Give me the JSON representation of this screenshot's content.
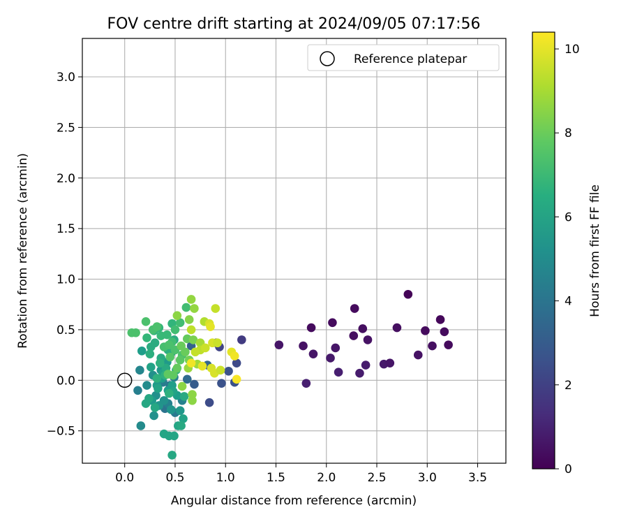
{
  "chart_data": {
    "type": "scatter",
    "title": "FOV centre drift starting at 2024/09/05 07:17:56",
    "xlabel": "Angular distance from reference (arcmin)",
    "ylabel": "Rotation from reference (arcmin)",
    "xlim": [
      -0.42,
      3.78
    ],
    "ylim": [
      -0.82,
      3.38
    ],
    "xticks": [
      0.0,
      0.5,
      1.0,
      1.5,
      2.0,
      2.5,
      3.0,
      3.5
    ],
    "xtick_labels": [
      "0.0",
      "0.5",
      "1.0",
      "1.5",
      "2.0",
      "2.5",
      "3.0",
      "3.5"
    ],
    "yticks": [
      -0.5,
      0.0,
      0.5,
      1.0,
      1.5,
      2.0,
      2.5,
      3.0
    ],
    "ytick_labels": [
      "−0.5",
      "0.0",
      "0.5",
      "1.0",
      "1.5",
      "2.0",
      "2.5",
      "3.0"
    ],
    "grid": true,
    "legend": {
      "position": "top-right",
      "entries": [
        {
          "label": "Reference platepar",
          "marker": "open-circle"
        }
      ]
    },
    "reference_point": {
      "x": 0.0,
      "y": 0.0
    },
    "colorbar": {
      "label": "Hours from first FF file",
      "colormap": "viridis",
      "range": [
        0,
        10.4
      ],
      "ticks": [
        0,
        2,
        4,
        6,
        8,
        10
      ],
      "tick_labels": [
        "0",
        "2",
        "4",
        "6",
        "8",
        "10"
      ]
    },
    "points": [
      [
        2.81,
        0.85,
        0.1
      ],
      [
        3.13,
        0.6,
        0.2
      ],
      [
        2.28,
        0.71,
        0.3
      ],
      [
        2.06,
        0.57,
        0.3
      ],
      [
        1.85,
        0.52,
        0.3
      ],
      [
        2.36,
        0.51,
        0.4
      ],
      [
        2.7,
        0.52,
        0.4
      ],
      [
        2.98,
        0.49,
        0.3
      ],
      [
        3.17,
        0.48,
        0.3
      ],
      [
        2.27,
        0.44,
        0.4
      ],
      [
        2.41,
        0.4,
        0.5
      ],
      [
        1.53,
        0.35,
        0.6
      ],
      [
        1.77,
        0.34,
        0.5
      ],
      [
        3.05,
        0.34,
        0.4
      ],
      [
        3.21,
        0.35,
        0.3
      ],
      [
        2.09,
        0.32,
        0.6
      ],
      [
        1.87,
        0.26,
        0.6
      ],
      [
        2.91,
        0.25,
        0.5
      ],
      [
        2.04,
        0.22,
        0.7
      ],
      [
        2.57,
        0.16,
        0.7
      ],
      [
        2.63,
        0.17,
        0.6
      ],
      [
        2.39,
        0.15,
        0.8
      ],
      [
        2.12,
        0.08,
        0.9
      ],
      [
        2.33,
        0.07,
        0.8
      ],
      [
        1.8,
        -0.03,
        0.9
      ],
      [
        1.16,
        0.4,
        1.8
      ],
      [
        0.91,
        0.37,
        1.9
      ],
      [
        0.94,
        0.33,
        2.1
      ],
      [
        1.11,
        0.17,
        2.3
      ],
      [
        1.03,
        0.09,
        2.6
      ],
      [
        0.96,
        -0.03,
        2.6
      ],
      [
        1.09,
        -0.02,
        2.6
      ],
      [
        0.84,
        -0.22,
        2.4
      ],
      [
        0.69,
        -0.04,
        3.0
      ],
      [
        0.66,
        0.34,
        3.2
      ],
      [
        0.82,
        0.15,
        3.4
      ],
      [
        0.62,
        0.01,
        3.6
      ],
      [
        0.45,
        -0.05,
        3.8
      ],
      [
        0.4,
        -0.28,
        4.0
      ],
      [
        0.5,
        -0.32,
        4.2
      ],
      [
        0.38,
        -0.02,
        4.4
      ],
      [
        0.13,
        -0.1,
        4.5
      ],
      [
        0.43,
        -0.23,
        4.6
      ],
      [
        0.57,
        -0.2,
        4.6
      ],
      [
        0.49,
        0.03,
        4.6
      ],
      [
        0.15,
        0.1,
        4.8
      ],
      [
        0.16,
        -0.45,
        5.0
      ],
      [
        0.22,
        -0.05,
        5.0
      ],
      [
        0.28,
        0.05,
        5.2
      ],
      [
        0.31,
        -0.15,
        5.2
      ],
      [
        0.34,
        -0.25,
        5.4
      ],
      [
        0.29,
        -0.35,
        5.2
      ],
      [
        0.39,
        -0.2,
        5.3
      ],
      [
        0.46,
        -0.29,
        5.4
      ],
      [
        0.55,
        -0.3,
        5.5
      ],
      [
        0.36,
        0.1,
        5.5
      ],
      [
        0.42,
        0.18,
        5.6
      ],
      [
        0.27,
        -0.2,
        5.6
      ],
      [
        0.32,
        -0.05,
        5.6
      ],
      [
        0.47,
        -0.05,
        5.8
      ],
      [
        0.52,
        -0.15,
        5.8
      ],
      [
        0.17,
        0.29,
        5.8
      ],
      [
        0.37,
        0.02,
        5.8
      ],
      [
        0.43,
        -0.1,
        5.8
      ],
      [
        0.26,
        0.13,
        6.0
      ],
      [
        0.48,
        -0.11,
        6.0
      ],
      [
        0.38,
        0.07,
        6.0
      ],
      [
        0.33,
        -0.08,
        6.0
      ],
      [
        0.53,
        -0.45,
        6.1
      ],
      [
        0.58,
        -0.38,
        6.0
      ],
      [
        0.39,
        -0.53,
        6.1
      ],
      [
        0.44,
        -0.55,
        6.1
      ],
      [
        0.49,
        -0.55,
        6.1
      ],
      [
        0.47,
        -0.74,
        6.2
      ],
      [
        0.21,
        -0.23,
        6.2
      ],
      [
        0.24,
        -0.18,
        6.2
      ],
      [
        0.3,
        -0.27,
        6.2
      ],
      [
        0.56,
        -0.45,
        6.3
      ],
      [
        0.59,
        -0.16,
        6.3
      ],
      [
        0.36,
        0.22,
        6.3
      ],
      [
        0.41,
        0.12,
        6.3
      ],
      [
        0.46,
        0.27,
        6.3
      ],
      [
        0.26,
        0.33,
        6.4
      ],
      [
        0.3,
        0.37,
        6.4
      ],
      [
        0.49,
        0.4,
        6.4
      ],
      [
        0.43,
        0.3,
        6.5
      ],
      [
        0.25,
        0.26,
        6.5
      ],
      [
        0.35,
        0.17,
        6.6
      ],
      [
        0.4,
        0.05,
        6.6
      ],
      [
        0.32,
        0.02,
        6.6
      ],
      [
        0.44,
        -0.13,
        6.6
      ],
      [
        0.51,
        0.1,
        6.6
      ],
      [
        0.29,
        0.49,
        6.7
      ],
      [
        0.34,
        0.52,
        6.8
      ],
      [
        0.47,
        0.56,
        6.8
      ],
      [
        0.22,
        0.42,
        6.9
      ],
      [
        0.36,
        0.44,
        7.0
      ],
      [
        0.42,
        0.45,
        7.0
      ],
      [
        0.47,
        0.38,
        7.2
      ],
      [
        0.5,
        0.5,
        7.2
      ],
      [
        0.55,
        0.57,
        7.2
      ],
      [
        0.61,
        0.72,
        7.2
      ],
      [
        0.28,
        0.5,
        7.3
      ],
      [
        0.39,
        0.33,
        7.3
      ],
      [
        0.44,
        0.35,
        7.4
      ],
      [
        0.5,
        0.3,
        7.4
      ],
      [
        0.57,
        0.25,
        7.4
      ],
      [
        0.07,
        0.47,
        7.4
      ],
      [
        0.11,
        0.47,
        7.4
      ],
      [
        0.21,
        0.58,
        7.4
      ],
      [
        0.32,
        0.53,
        7.4
      ],
      [
        0.45,
        0.23,
        7.6
      ],
      [
        0.55,
        0.2,
        7.7
      ],
      [
        0.62,
        0.41,
        7.9
      ],
      [
        0.43,
        0.06,
        7.8
      ],
      [
        0.48,
        0.05,
        7.8
      ],
      [
        0.52,
        0.12,
        7.9
      ],
      [
        0.56,
        0.34,
        8.0
      ],
      [
        0.6,
        0.28,
        8.0
      ],
      [
        0.64,
        0.2,
        8.2
      ],
      [
        0.68,
        0.4,
        8.3
      ],
      [
        0.66,
        0.8,
        8.7
      ],
      [
        0.69,
        0.71,
        8.7
      ],
      [
        0.64,
        0.6,
        8.5
      ],
      [
        0.52,
        0.64,
        8.6
      ],
      [
        0.57,
        -0.06,
        8.6
      ],
      [
        0.67,
        -0.14,
        8.6
      ],
      [
        0.67,
        -0.2,
        8.6
      ],
      [
        0.63,
        0.12,
        8.8
      ],
      [
        0.72,
        0.16,
        8.9
      ],
      [
        0.75,
        0.37,
        9.0
      ],
      [
        0.79,
        0.58,
        9.2
      ],
      [
        0.66,
        0.5,
        9.4
      ],
      [
        0.75,
        0.3,
        9.4
      ],
      [
        0.7,
        0.28,
        9.5
      ],
      [
        0.8,
        0.32,
        9.6
      ],
      [
        0.84,
        0.56,
        9.8
      ],
      [
        0.85,
        0.53,
        10.0
      ],
      [
        0.87,
        0.37,
        9.8
      ],
      [
        0.92,
        0.37,
        9.6
      ],
      [
        0.9,
        0.71,
        9.5
      ],
      [
        0.89,
        0.07,
        9.8
      ],
      [
        0.95,
        0.1,
        9.6
      ],
      [
        0.86,
        0.12,
        9.8
      ],
      [
        1.06,
        0.28,
        10.0
      ],
      [
        1.09,
        0.24,
        10.2
      ],
      [
        1.11,
        0.01,
        10.3
      ],
      [
        0.77,
        0.14,
        10.0
      ],
      [
        0.66,
        0.17,
        10.2
      ]
    ]
  }
}
